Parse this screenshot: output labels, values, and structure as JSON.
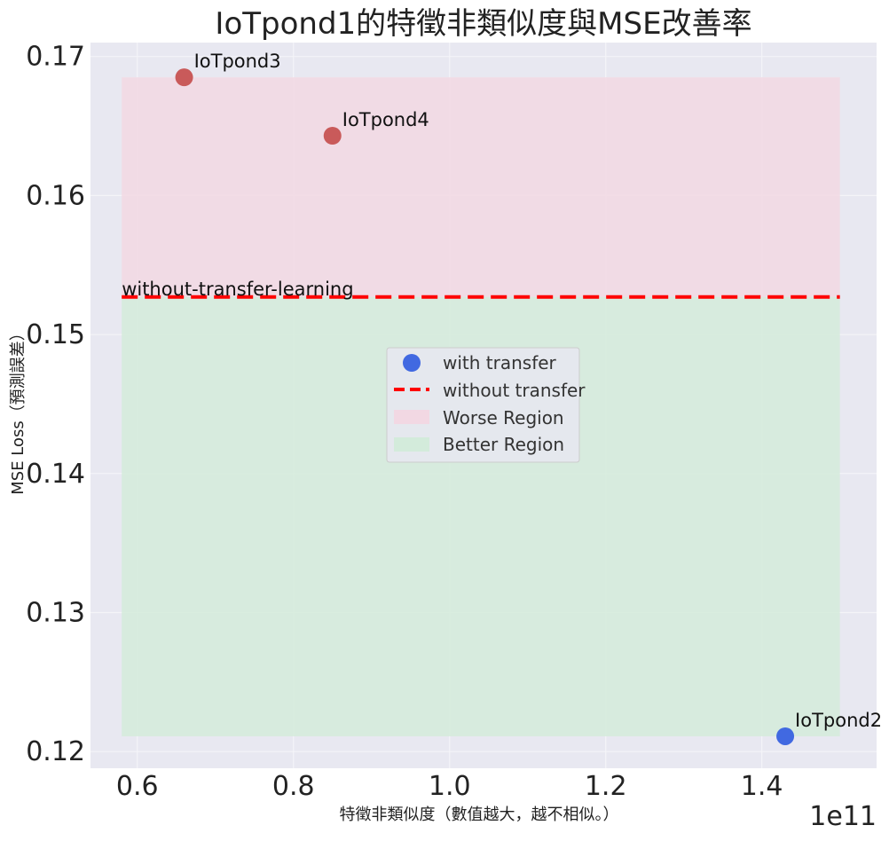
{
  "chart_data": {
    "type": "scatter",
    "title": "IoTpond1的特徵非類似度與MSE改善率",
    "xlabel": "特徵非類似度（數值越大，越不相似。）",
    "ylabel": "MSE Loss（預測誤差）",
    "x_offset_label": "1e11",
    "xlim": [
      0.54,
      1.547
    ],
    "ylim": [
      0.1188,
      0.171
    ],
    "x_ticks": [
      0.6,
      0.8,
      1.0,
      1.2,
      1.4
    ],
    "x_tick_labels": [
      "0.6",
      "0.8",
      "1.0",
      "1.2",
      "1.4"
    ],
    "y_ticks": [
      0.12,
      0.13,
      0.14,
      0.15,
      0.16,
      0.17
    ],
    "y_tick_labels": [
      "0.12",
      "0.13",
      "0.14",
      "0.15",
      "0.16",
      "0.17"
    ],
    "grid": true,
    "points": [
      {
        "label": "IoTpond3",
        "x": 0.66,
        "y": 0.1685,
        "color": "#c95a5a"
      },
      {
        "label": "IoTpond4",
        "x": 0.85,
        "y": 0.1643,
        "color": "#c95a5a"
      },
      {
        "label": "IoTpond2",
        "x": 1.43,
        "y": 0.1211,
        "color": "#4169e1"
      }
    ],
    "baseline": {
      "y": 0.1527,
      "label": "without-transfer-learning",
      "color": "#ff0000"
    },
    "regions": [
      {
        "name": "Worse Region",
        "x": [
          0.58,
          1.5
        ],
        "y": [
          0.1527,
          0.1685
        ],
        "color": "#f2d8e3"
      },
      {
        "name": "Better Region",
        "x": [
          0.58,
          1.5
        ],
        "y": [
          0.1211,
          0.1527
        ],
        "color": "#d3ebdb"
      }
    ],
    "legend": {
      "placement": "center",
      "entries": [
        {
          "label": "with transfer",
          "kind": "marker",
          "color": "#4169e1"
        },
        {
          "label": "without transfer",
          "kind": "dashed-line",
          "color": "#ff0000"
        },
        {
          "label": "Worse Region",
          "kind": "patch",
          "color": "#f2d8e3"
        },
        {
          "label": "Better Region",
          "kind": "patch",
          "color": "#d3ebdb"
        }
      ]
    },
    "colors": {
      "plot_bg": "#e8e8f1",
      "grid": "#f4f4f8"
    }
  }
}
